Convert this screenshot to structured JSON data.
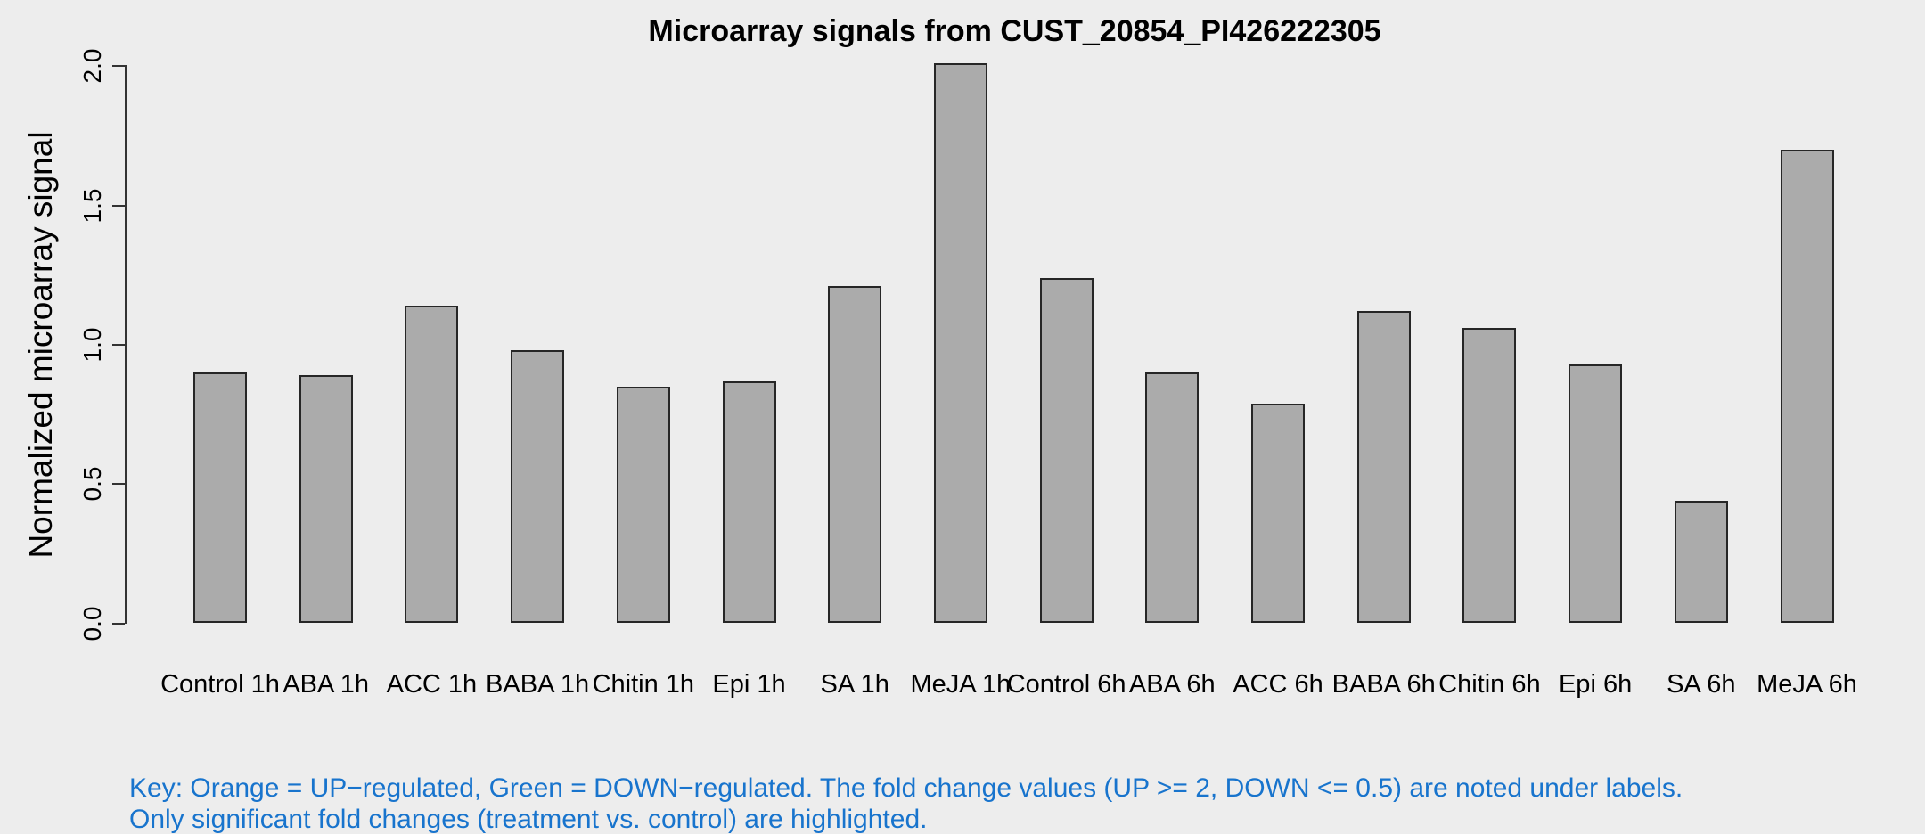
{
  "title": "Microarray signals from CUST_20854_PI426222305",
  "y_axis": {
    "label": "Normalized microarray signal",
    "tick_labels": [
      "0.0",
      "0.5",
      "1.0",
      "1.5",
      "2.0"
    ]
  },
  "key": {
    "line1": "Key: Orange = UP−regulated, Green = DOWN−regulated. The fold change values (UP >= 2, DOWN <= 0.5) are noted under labels.",
    "line2": "Only significant fold changes (treatment vs. control) are highlighted."
  },
  "colors": {
    "background": "#EDEDED",
    "bar_fill": "#ABABAB",
    "bar_border": "#262626",
    "axis": "#333333",
    "title_text": "#000000",
    "key_text": "#1874CD"
  },
  "chart_data": {
    "type": "bar",
    "title": "Microarray signals from CUST_20854_PI426222305",
    "xlabel": "",
    "ylabel": "Normalized microarray signal",
    "categories": [
      "Control 1h",
      "ABA 1h",
      "ACC 1h",
      "BABA 1h",
      "Chitin 1h",
      "Epi 1h",
      "SA 1h",
      "MeJA 1h",
      "Control 6h",
      "ABA 6h",
      "ACC 6h",
      "BABA 6h",
      "Chitin 6h",
      "Epi 6h",
      "SA 6h",
      "MeJA 6h"
    ],
    "values": [
      0.9,
      0.89,
      1.14,
      0.98,
      0.85,
      0.87,
      1.21,
      2.01,
      1.24,
      0.9,
      0.79,
      1.12,
      1.06,
      0.93,
      0.44,
      1.7
    ],
    "ylim": [
      0.0,
      2.0
    ],
    "yticks": [
      0.0,
      0.5,
      1.0,
      1.5,
      2.0
    ],
    "grid": false,
    "legend_position": "none",
    "bar_highlight_note": "no bars highlighted; all bars gray"
  }
}
